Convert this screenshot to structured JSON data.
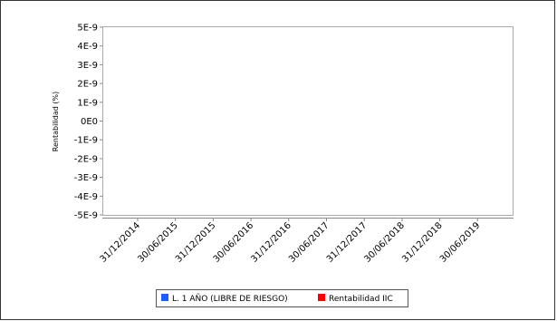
{
  "chart_data": {
    "type": "line",
    "title": "",
    "xlabel": "",
    "ylabel": "Rentabilidad (%)",
    "y_ticks": [
      "5E-9",
      "4E-9",
      "3E-9",
      "2E-9",
      "1E-9",
      "0E0",
      "-1E-9",
      "-2E-9",
      "-3E-9",
      "-4E-9",
      "-5E-9"
    ],
    "ylim": [
      -5e-09,
      5e-09
    ],
    "x_ticks": [
      "31/12/2014",
      "30/06/2015",
      "31/12/2015",
      "30/06/2016",
      "31/12/2016",
      "30/06/2017",
      "31/12/2017",
      "30/06/2018",
      "31/12/2018",
      "30/06/2019"
    ],
    "grid": false,
    "legend_position": "bottom",
    "series": [
      {
        "name": "L. 1 AÑO (LIBRE DE RIESGO)",
        "color": "#1a5cff",
        "values": []
      },
      {
        "name": "Rentabilidad IIC",
        "color": "#ff0000",
        "values": []
      }
    ]
  }
}
